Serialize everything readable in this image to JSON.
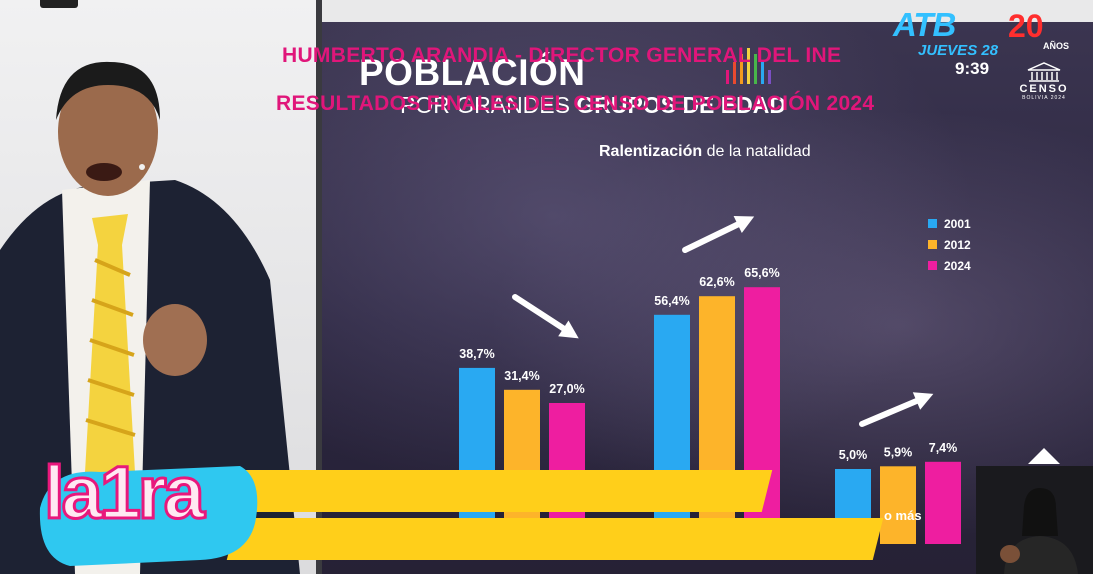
{
  "slide": {
    "title": "POBLACIÓN",
    "subtitle_regular": "POR GRANDES ",
    "subtitle_bold": "GRUPOS DE EDAD",
    "note_bold": "Ralentización",
    "note_regular": " de la natalidad",
    "partial_label": "o más"
  },
  "chart_data": {
    "type": "bar",
    "title": "POBLACIÓN POR GRANDES GRUPOS DE EDAD",
    "subtitle": "Ralentización de la natalidad",
    "legend_position": "right",
    "series": [
      {
        "name": "2001",
        "color": "#29a9f2",
        "values": [
          38.7,
          56.4,
          5.0
        ],
        "labels": [
          "38,7%",
          "56,4%",
          "5,0%"
        ]
      },
      {
        "name": "2012",
        "color": "#fdb42a",
        "values": [
          31.4,
          62.6,
          5.9
        ],
        "labels": [
          "31,4%",
          "62,6%",
          "5,9%"
        ]
      },
      {
        "name": "2024",
        "color": "#ee1ea0",
        "values": [
          27.0,
          65.6,
          7.4
        ],
        "labels": [
          "27,0%",
          "65,6%",
          "7,4%"
        ]
      }
    ],
    "trend_arrows": [
      "down",
      "up",
      "up"
    ]
  },
  "broadcast": {
    "channel": "ATB",
    "day": "JUEVES 28",
    "time": "9:39",
    "anniversary": "20",
    "anniversary_unit": "AÑOS",
    "censo_word": "CENSO",
    "censo_small": "BOLIVIA 2024"
  },
  "lower_third": {
    "show": "la1ra",
    "name_line": "HUMBERTO ARANDIA - DIRECTOR GENERAL DEL INE",
    "title_line": "RESULTADOS FINALES DEL CENSO DE POBLACIÓN 2024"
  },
  "colors": {
    "series_2001": "#29a9f2",
    "series_2012": "#fdb42a",
    "series_2024": "#ee1ea0",
    "lower_third": "#ffcf1a",
    "lower_text": "#e0167a"
  }
}
